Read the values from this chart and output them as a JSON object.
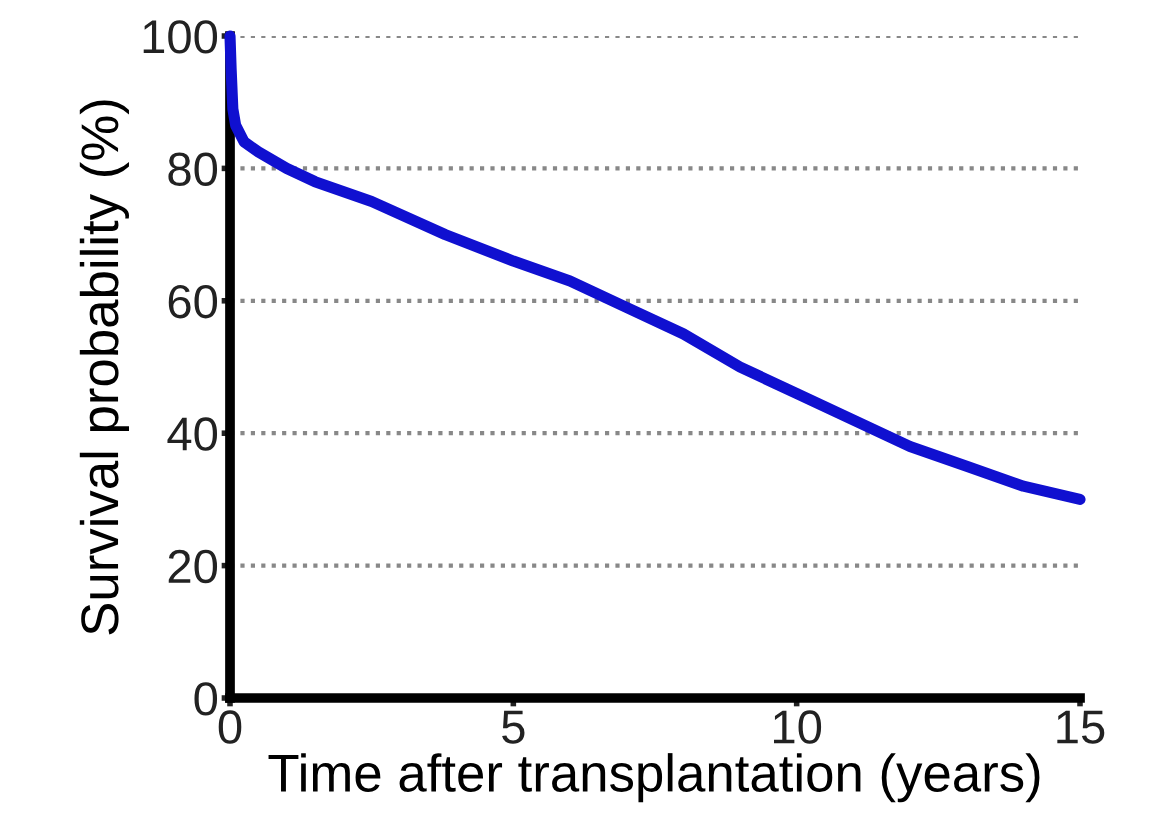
{
  "chart_data": {
    "type": "line",
    "xlabel": "Time after transplantation (years)",
    "ylabel": "Survival probability (%)",
    "x": [
      0,
      0.02,
      0.05,
      0.1,
      0.25,
      0.5,
      1,
      1.5,
      2.5,
      3.8,
      5,
      6,
      7,
      8,
      9,
      10,
      11,
      12,
      13,
      14,
      15
    ],
    "series": [
      {
        "color": "#1010d0",
        "values": [
          100,
          95,
          89,
          86.5,
          84,
          82.5,
          80,
          78,
          75,
          70,
          66,
          63,
          59,
          55,
          50,
          46,
          42,
          38,
          35,
          32,
          30
        ]
      }
    ],
    "xlim": [
      0,
      15
    ],
    "ylim": [
      0,
      100
    ],
    "xticks": [
      0,
      5,
      10,
      15
    ],
    "yticks": [
      0,
      20,
      40,
      60,
      80,
      100
    ],
    "grid": "y",
    "marker": "none",
    "line_style": "solid"
  }
}
